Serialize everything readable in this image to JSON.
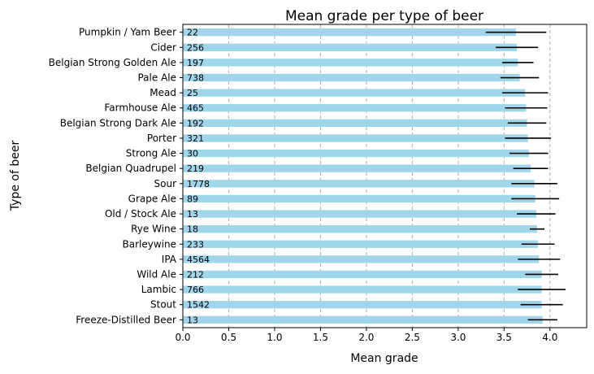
{
  "chart_data": {
    "type": "bar",
    "orientation": "horizontal",
    "title": "Mean grade per type of beer",
    "xlabel": "Mean grade",
    "ylabel": "Type of beer",
    "xlim": [
      0,
      4.4
    ],
    "xticks": [
      "0.0",
      "0.5",
      "1.0",
      "1.5",
      "2.0",
      "2.5",
      "3.0",
      "3.5",
      "4.0"
    ],
    "grid": "vertical dashed",
    "bar_color": "#9fd6ec",
    "errorbar_color": "#000000",
    "categories": [
      "Pumpkin / Yam Beer",
      "Cider",
      "Belgian Strong Golden Ale",
      "Pale Ale",
      "Mead",
      "Farmhouse Ale",
      "Belgian Strong Dark Ale",
      "Porter",
      "Strong Ale",
      "Belgian Quadrupel",
      "Sour",
      "Grape Ale",
      "Old / Stock Ale",
      "Rye Wine",
      "Barleywine",
      "IPA",
      "Wild Ale",
      "Lambic",
      "Stout",
      "Freeze-Distilled Beer"
    ],
    "values": [
      3.63,
      3.64,
      3.65,
      3.67,
      3.73,
      3.74,
      3.75,
      3.76,
      3.77,
      3.79,
      3.83,
      3.84,
      3.85,
      3.86,
      3.87,
      3.88,
      3.91,
      3.91,
      3.91,
      3.92
    ],
    "errors": [
      0.33,
      0.23,
      0.17,
      0.21,
      0.25,
      0.23,
      0.21,
      0.25,
      0.21,
      0.19,
      0.25,
      0.26,
      0.21,
      0.08,
      0.18,
      0.23,
      0.18,
      0.26,
      0.23,
      0.16
    ],
    "counts": [
      "22",
      "256",
      "197",
      "738",
      "25",
      "465",
      "192",
      "321",
      "30",
      "219",
      "1778",
      "89",
      "13",
      "18",
      "233",
      "4564",
      "212",
      "766",
      "1542",
      "13"
    ]
  }
}
